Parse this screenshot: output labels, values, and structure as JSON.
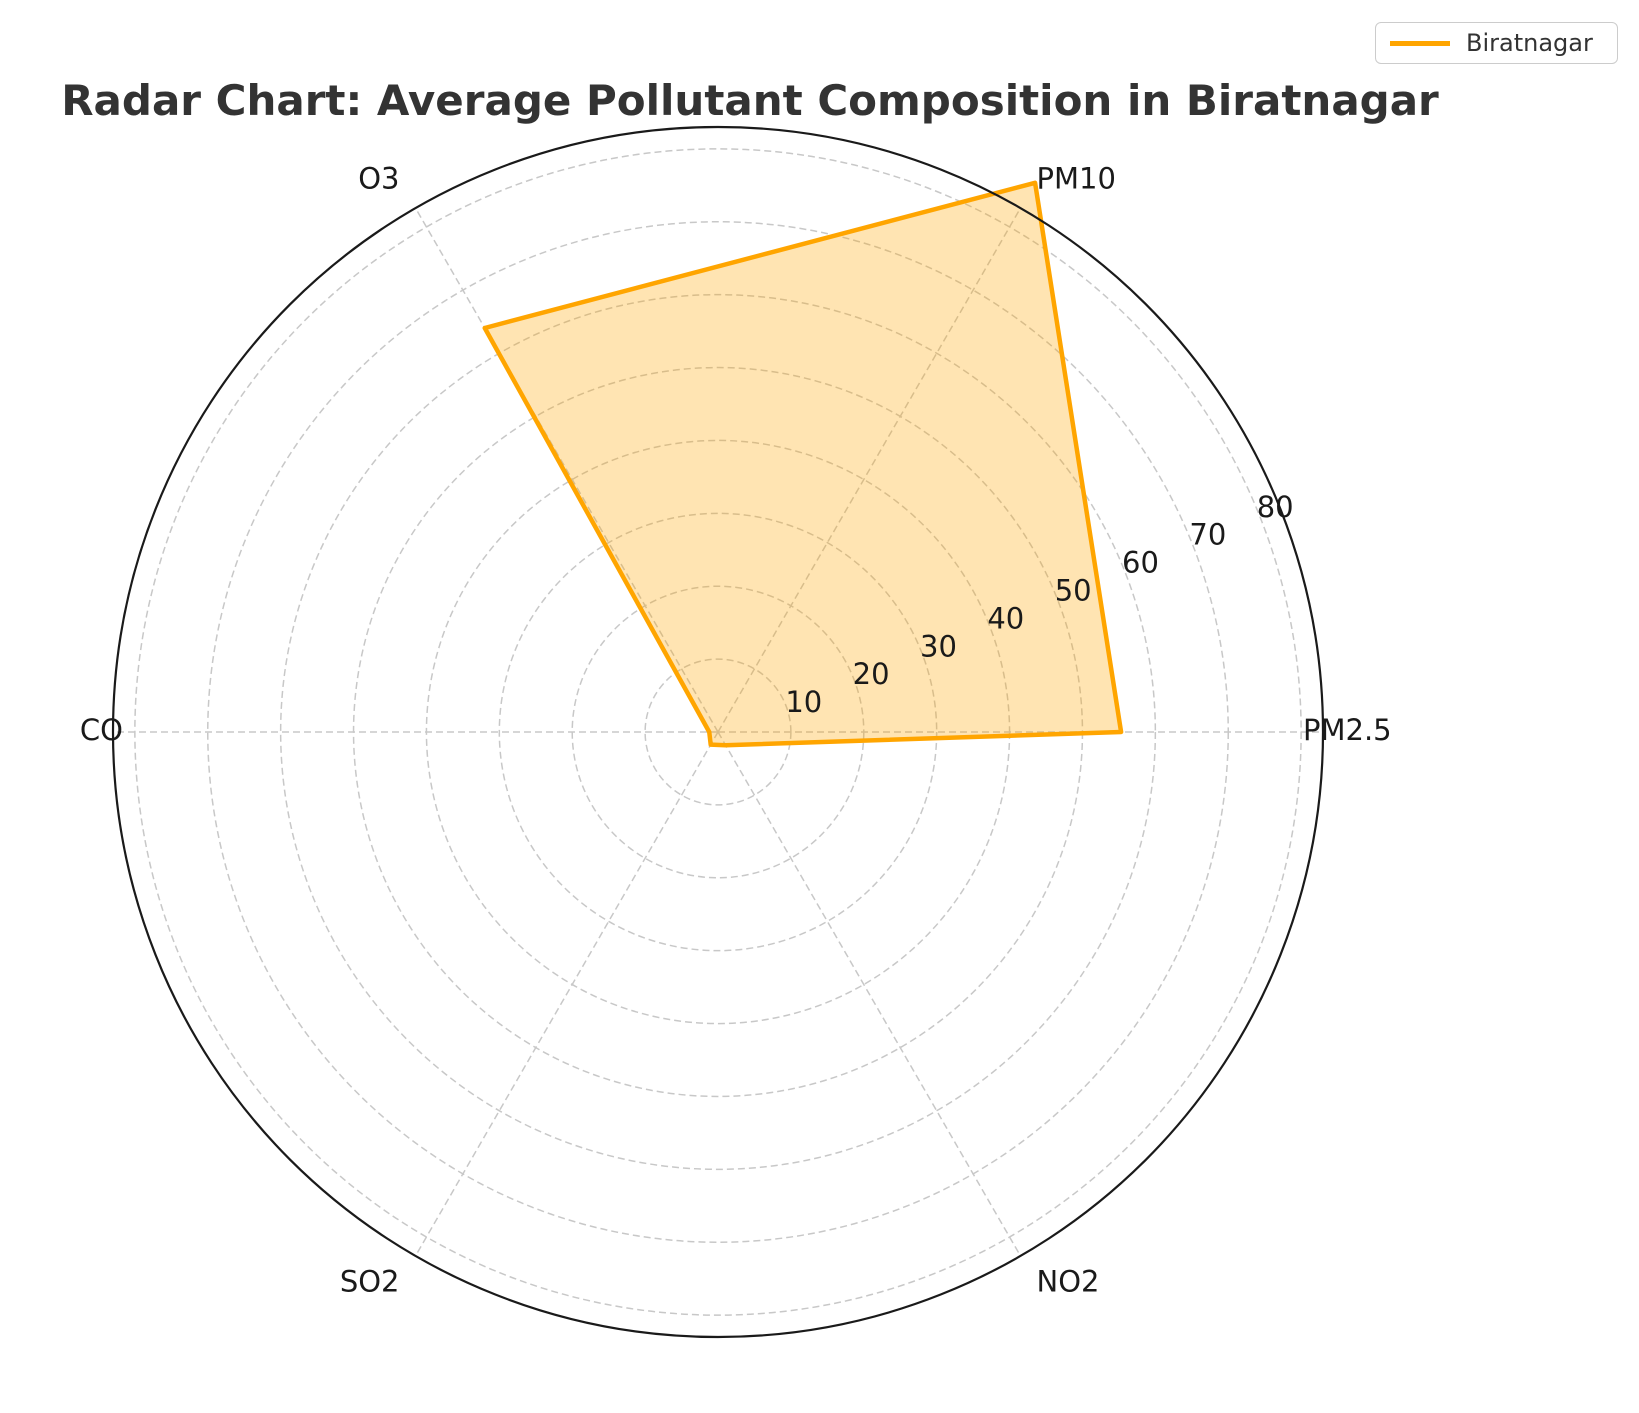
{
  "chart_data": {
    "type": "radar",
    "title": "Radar Chart: Average Pollutant Composition in Biratnagar",
    "categories": [
      "PM2.5",
      "PM10",
      "O3",
      "CO",
      "SO2",
      "NO2"
    ],
    "series": [
      {
        "name": "Biratnagar",
        "values": [
          55.3,
          87.0,
          64.0,
          1.2,
          2.0,
          2.1
        ],
        "color": "#FFA500",
        "fill_color": "#FFA500",
        "fill_opacity": 0.3
      }
    ],
    "rlim": [
      0,
      83
    ],
    "rticks": [
      10,
      20,
      30,
      40,
      50,
      60,
      70,
      80
    ],
    "rtick_labels": [
      "10",
      "20",
      "30",
      "40",
      "50",
      "60",
      "70",
      "80"
    ],
    "grid": true,
    "grid_color": "#c8c8c8",
    "legend_position": "top-right"
  }
}
